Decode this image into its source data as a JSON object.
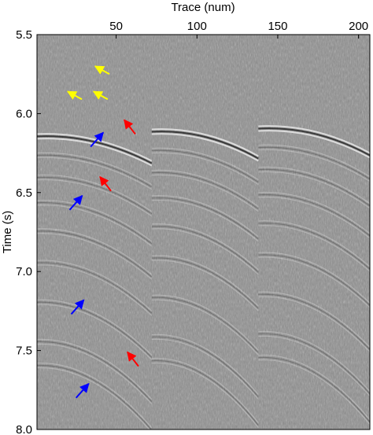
{
  "chart_data": {
    "type": "heatmap",
    "description_visible": "seismic gather image",
    "xlabel": "Trace (num)",
    "ylabel": "Time (s)",
    "x_axis_position": "top",
    "xlim": [
      1,
      207
    ],
    "ylim": [
      5.5,
      8.0
    ],
    "y_inverted": true,
    "x_ticks": [
      {
        "value": 50,
        "label": "50"
      },
      {
        "value": 100,
        "label": "100"
      },
      {
        "value": 150,
        "label": "150"
      },
      {
        "value": 200,
        "label": "200"
      }
    ],
    "y_ticks": [
      {
        "value": 5.5,
        "label": "5.5"
      },
      {
        "value": 6.0,
        "label": "6.0"
      },
      {
        "value": 6.5,
        "label": "6.5"
      },
      {
        "value": 7.0,
        "label": "7.0"
      },
      {
        "value": 7.5,
        "label": "7.5"
      },
      {
        "value": 8.0,
        "label": "8.0"
      }
    ],
    "colormap": "gray",
    "grid": false,
    "events": [
      {
        "shot_trace": 0,
        "end_trace": 72,
        "apex_time": 6.13
      },
      {
        "shot_trace": 72,
        "end_trace": 138,
        "apex_time": 6.1
      },
      {
        "shot_trace": 138,
        "end_trace": 207,
        "apex_time": 6.08
      }
    ],
    "annotations": [
      {
        "type": "arrow",
        "color": "#ffff00",
        "x": 37,
        "y": 5.7
      },
      {
        "type": "arrow",
        "color": "#ffff00",
        "x": 20,
        "y": 5.86
      },
      {
        "type": "arrow",
        "color": "#ffff00",
        "x": 36,
        "y": 5.86
      },
      {
        "type": "arrow",
        "color": "#ff0000",
        "x": 55,
        "y": 6.04
      },
      {
        "type": "arrow",
        "color": "#0000ff",
        "x": 42,
        "y": 6.12
      },
      {
        "type": "arrow",
        "color": "#ff0000",
        "x": 40,
        "y": 6.4
      },
      {
        "type": "arrow",
        "color": "#0000ff",
        "x": 29,
        "y": 6.52
      },
      {
        "type": "arrow",
        "color": "#0000ff",
        "x": 30,
        "y": 7.18
      },
      {
        "type": "arrow",
        "color": "#ff0000",
        "x": 57,
        "y": 7.51
      },
      {
        "type": "arrow",
        "color": "#0000ff",
        "x": 33,
        "y": 7.71
      }
    ]
  }
}
